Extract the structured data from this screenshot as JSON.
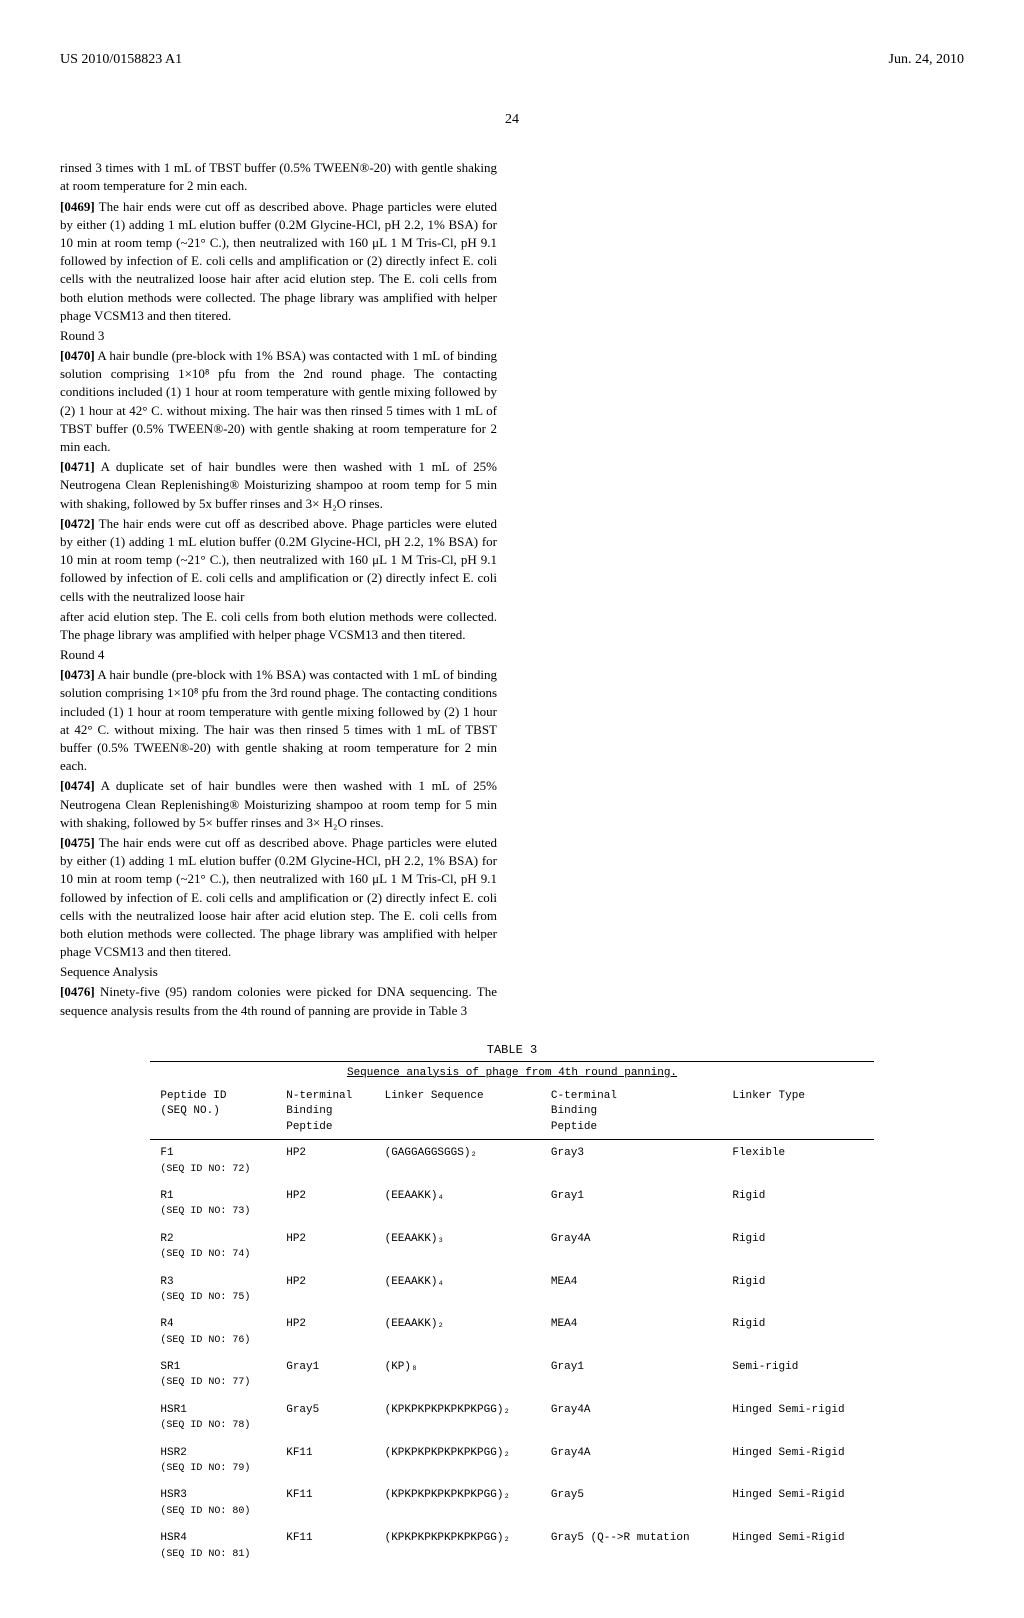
{
  "header": {
    "pub_number": "US 2010/0158823 A1",
    "pub_date": "Jun. 24, 2010"
  },
  "page_number": "24",
  "body": {
    "col1": {
      "p1": "rinsed 3 times with 1 mL of TBST buffer (0.5% TWEEN®-20) with gentle shaking at room temperature for 2 min each.",
      "p2_num": "[0469]",
      "p2": "The hair ends were cut off as described above. Phage particles were eluted by either (1) adding 1 mL elution buffer (0.2M Glycine-HCl, pH 2.2, 1% BSA) for 10 min at room temp (~21° C.), then neutralized with 160 μL 1 M Tris-Cl, pH 9.1 followed by infection of E. coli cells and amplification or (2) directly infect E. coli cells with the neutralized loose hair after acid elution step. The E. coli cells from both elution methods were collected. The phage library was amplified with helper phage VCSM13 and then titered.",
      "h_round3": "Round 3",
      "p3_num": "[0470]",
      "p3": "A hair bundle (pre-block with 1% BSA) was contacted with 1 mL of binding solution comprising 1×10⁸ pfu from the 2nd round phage. The contacting conditions included (1) 1 hour at room temperature with gentle mixing followed by (2) 1 hour at 42° C. without mixing. The hair was then rinsed 5 times with 1 mL of TBST buffer (0.5% TWEEN®-20) with gentle shaking at room temperature for 2 min each.",
      "p4_num": "[0471]",
      "p4": "A duplicate set of hair bundles were then washed with 1 mL of 25% Neutrogena Clean Replenishing® Moisturizing shampoo at room temp for 5 min with shaking, followed by 5x buffer rinses and 3× H₂O rinses.",
      "p5_num": "[0472]",
      "p5": "The hair ends were cut off as described above. Phage particles were eluted by either (1) adding 1 mL elution buffer (0.2M Glycine-HCl, pH 2.2, 1% BSA) for 10 min at room temp (~21° C.), then neutralized with 160 μL 1 M Tris-Cl, pH 9.1 followed by infection of E. coli cells and amplification or (2) directly infect E. coli cells with the neutralized loose hair"
    },
    "col2": {
      "p1": "after acid elution step. The E. coli cells from both elution methods were collected. The phage library was amplified with helper phage VCSM13 and then titered.",
      "h_round4": "Round 4",
      "p2_num": "[0473]",
      "p2": "A hair bundle (pre-block with 1% BSA) was contacted with 1 mL of binding solution comprising 1×10⁸ pfu from the 3rd round phage. The contacting conditions included (1) 1 hour at room temperature with gentle mixing followed by (2) 1 hour at 42° C. without mixing. The hair was then rinsed 5 times with 1 mL of TBST buffer (0.5% TWEEN®-20) with gentle shaking at room temperature for 2 min each.",
      "p3_num": "[0474]",
      "p3": "A duplicate set of hair bundles were then washed with 1 mL of 25% Neutrogena Clean Replenishing® Moisturizing shampoo at room temp for 5 min with shaking, followed by 5× buffer rinses and 3× H₂O rinses.",
      "p4_num": "[0475]",
      "p4": "The hair ends were cut off as described above. Phage particles were eluted by either (1) adding 1 mL elution buffer (0.2M Glycine-HCl, pH 2.2, 1% BSA) for 10 min at room temp (~21° C.), then neutralized with 160 μL 1 M Tris-Cl, pH 9.1 followed by infection of E. coli cells and amplification or (2) directly infect E. coli cells with the neutralized loose hair after acid elution step. The E. coli cells from both elution methods were collected. The phage library was amplified with helper phage VCSM13 and then titered.",
      "h_seq": "Sequence Analysis",
      "p5_num": "[0476]",
      "p5": "Ninety-five (95) random colonies were picked for DNA sequencing. The sequence analysis results from the 4th round of panning are provide in Table 3"
    }
  },
  "table3": {
    "label": "TABLE 3",
    "title": "Sequence analysis of phage from 4th round panning.",
    "columns": [
      "Peptide ID (SEQ NO.)",
      "N-terminal Binding Peptide",
      "Linker Sequence",
      "C-terminal Binding Peptide",
      "Linker Type"
    ],
    "rows": [
      {
        "id": "F1",
        "seq": "(SEQ ID NO: 72)",
        "nterm": "HP2",
        "linker": "(GAGGAGGSGGS)₂",
        "cterm": "Gray3",
        "type": "Flexible"
      },
      {
        "id": "R1",
        "seq": "(SEQ ID NO: 73)",
        "nterm": "HP2",
        "linker": "(EEAAKK)₄",
        "cterm": "Gray1",
        "type": "Rigid"
      },
      {
        "id": "R2",
        "seq": "(SEQ ID NO: 74)",
        "nterm": "HP2",
        "linker": "(EEAAKK)₃",
        "cterm": "Gray4A",
        "type": "Rigid"
      },
      {
        "id": "R3",
        "seq": "(SEQ ID NO: 75)",
        "nterm": "HP2",
        "linker": "(EEAAKK)₄",
        "cterm": "MEA4",
        "type": "Rigid"
      },
      {
        "id": "R4",
        "seq": "(SEQ ID NO: 76)",
        "nterm": "HP2",
        "linker": "(EEAAKK)₂",
        "cterm": "MEA4",
        "type": "Rigid"
      },
      {
        "id": "SR1",
        "seq": "(SEQ ID NO: 77)",
        "nterm": "Gray1",
        "linker": "(KP)₈",
        "cterm": "Gray1",
        "type": "Semi-rigid"
      },
      {
        "id": "HSR1",
        "seq": "(SEQ ID NO: 78)",
        "nterm": "Gray5",
        "linker": "(KPKPKPKPKPKPKPGG)₂",
        "cterm": "Gray4A",
        "type": "Hinged Semi-rigid"
      },
      {
        "id": "HSR2",
        "seq": "(SEQ ID NO: 79)",
        "nterm": "KF11",
        "linker": "(KPKPKPKPKPKPKPGG)₂",
        "cterm": "Gray4A",
        "type": "Hinged Semi-Rigid"
      },
      {
        "id": "HSR3",
        "seq": "(SEQ ID NO: 80)",
        "nterm": "KF11",
        "linker": "(KPKPKPKPKPKPKPGG)₂",
        "cterm": "Gray5",
        "type": "Hinged Semi-Rigid"
      },
      {
        "id": "HSR4",
        "seq": "(SEQ ID NO: 81)",
        "nterm": "KF11",
        "linker": "(KPKPKPKPKPKPKPGG)₂",
        "cterm": "Gray5 (Q-->R mutation",
        "type": "Hinged Semi-Rigid"
      }
    ]
  }
}
